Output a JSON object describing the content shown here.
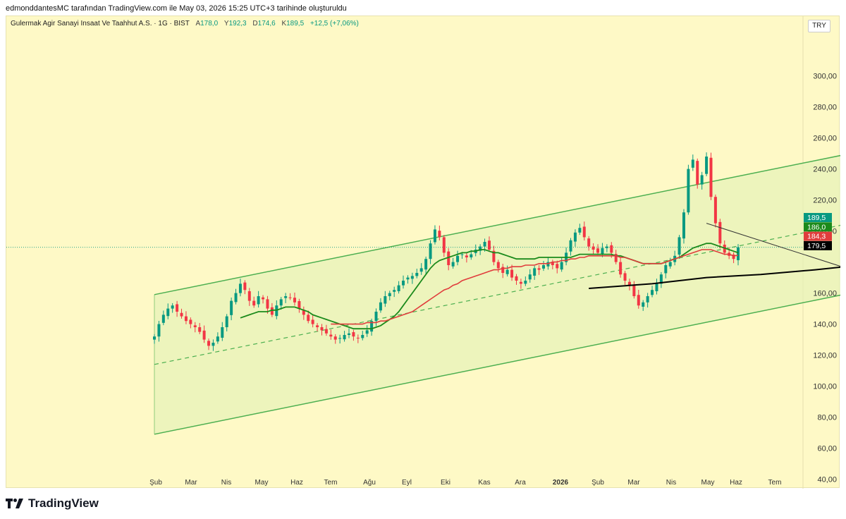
{
  "header": {
    "attribution": "edmonddantesMC tarafından TradingView.com ile May 03, 2026 15:25 UTC+3 tarihinde oluşturuldu"
  },
  "legend": {
    "symbol": "Gulermak Agir Sanayi Insaat Ve Taahhut A.S. · 1G · BIST",
    "open_label": "A",
    "open": "178,0",
    "high_label": "Y",
    "high": "192,3",
    "low_label": "D",
    "low": "174,6",
    "close_label": "K",
    "close": "189,5",
    "change": "+12,5 (+7,06%)"
  },
  "currency": "TRY",
  "footer": {
    "brand": "TradingView",
    "logo_icon": "tradingview-logo-icon"
  },
  "colors": {
    "background": "#fef9c6",
    "channel": "#4caf50",
    "up": "#089981",
    "down": "#f23645",
    "ma_green": "#1b8a1b",
    "ma_red": "#e03c3c",
    "ma_black": "#000000"
  },
  "chart_data": {
    "type": "candlestick",
    "y_ticks": [
      "300,00",
      "280,00",
      "260,00",
      "240,00",
      "220,00",
      "200,00",
      "160,00",
      "140,00",
      "120,00",
      "100,00",
      "80,00",
      "60,00",
      "40,00"
    ],
    "y_tick_values": [
      300,
      280,
      260,
      240,
      220,
      200,
      160,
      140,
      120,
      100,
      80,
      60,
      40
    ],
    "x_ticks": [
      "Şub",
      "Mar",
      "Nis",
      "May",
      "Haz",
      "Tem",
      "Ağu",
      "Eyl",
      "Eki",
      "Kas",
      "Ara",
      "2026",
      "Şub",
      "Mar",
      "Nis",
      "May",
      "Haz",
      "Tem"
    ],
    "price_labels": [
      {
        "text": "189,5",
        "value": 189.5,
        "color": "#089981"
      },
      {
        "text": "186,0",
        "value": 186.0,
        "color": "#1b8a1b"
      },
      {
        "text": "184,3",
        "value": 184.3,
        "color": "#e03c3c"
      },
      {
        "text": "179,5",
        "value": 179.5,
        "color": "#000000"
      }
    ],
    "channel": {
      "upper": [
        [
          0,
          159
        ],
        [
          164,
          256
        ]
      ],
      "middle": [
        [
          0,
          114
        ],
        [
          164,
          211
        ]
      ],
      "lower": [
        [
          0,
          69
        ],
        [
          164,
          166
        ]
      ]
    },
    "trendline": [
      [
        122,
        205
      ],
      [
        164,
        172
      ]
    ],
    "closes": [
      132,
      140,
      146,
      150,
      152,
      148,
      145,
      142,
      140,
      138,
      135,
      130,
      126,
      128,
      132,
      138,
      145,
      155,
      160,
      166,
      162,
      155,
      152,
      158,
      156,
      150,
      146,
      152,
      156,
      158,
      157,
      154,
      150,
      146,
      142,
      140,
      138,
      136,
      134,
      132,
      130,
      131,
      133,
      134,
      132,
      131,
      133,
      136,
      142,
      148,
      154,
      158,
      160,
      162,
      165,
      168,
      170,
      171,
      173,
      176,
      182,
      192,
      201,
      196,
      186,
      178,
      180,
      184,
      185,
      183,
      185,
      188,
      190,
      193,
      188,
      180,
      176,
      173,
      175,
      170,
      168,
      166,
      168,
      172,
      176,
      175,
      178,
      180,
      178,
      176,
      180,
      186,
      194,
      199,
      202,
      196,
      190,
      188,
      186,
      189,
      190,
      186,
      180,
      172,
      168,
      165,
      158,
      152,
      154,
      158,
      162,
      166,
      172,
      178,
      180,
      184,
      196,
      212,
      240,
      246,
      230,
      236,
      248,
      222,
      205,
      192,
      186,
      184,
      182,
      189.5
    ],
    "ma_green": [
      null,
      null,
      null,
      null,
      null,
      null,
      null,
      null,
      null,
      null,
      null,
      null,
      null,
      null,
      null,
      null,
      null,
      null,
      null,
      144,
      145,
      146,
      147,
      148,
      148,
      148,
      149,
      149,
      150,
      151,
      151,
      151,
      150,
      149,
      148,
      146,
      145,
      144,
      143,
      142,
      141,
      140,
      139,
      138,
      137,
      137,
      137,
      137,
      137,
      138,
      139,
      141,
      143,
      145,
      148,
      152,
      156,
      160,
      164,
      168,
      172,
      176,
      179,
      181,
      182,
      183,
      184,
      185,
      186,
      186,
      187,
      187,
      188,
      188,
      187,
      186,
      186,
      185,
      184,
      183,
      182,
      182,
      182,
      182,
      182,
      183,
      183,
      183,
      183,
      183,
      183,
      183,
      183,
      184,
      185,
      185,
      185,
      185,
      185,
      185,
      185,
      185,
      184,
      184,
      183,
      182,
      181,
      180,
      179,
      179,
      179,
      179,
      179,
      180,
      181,
      182,
      183,
      185,
      187,
      189,
      190,
      191,
      192,
      192,
      191,
      190,
      189,
      188,
      187,
      186
    ],
    "ma_red": [
      null,
      null,
      null,
      null,
      null,
      null,
      null,
      null,
      null,
      null,
      null,
      null,
      null,
      null,
      null,
      null,
      null,
      null,
      null,
      null,
      null,
      null,
      null,
      null,
      null,
      null,
      null,
      null,
      null,
      null,
      null,
      null,
      null,
      null,
      null,
      null,
      null,
      null,
      null,
      140,
      140,
      140,
      140,
      140,
      140,
      140,
      140,
      141,
      141,
      141,
      142,
      142,
      143,
      144,
      145,
      146,
      147,
      148,
      150,
      152,
      154,
      156,
      158,
      160,
      162,
      163,
      165,
      166,
      168,
      169,
      170,
      171,
      172,
      173,
      174,
      175,
      175,
      176,
      176,
      177,
      177,
      177,
      178,
      178,
      178,
      179,
      179,
      179,
      180,
      180,
      181,
      181,
      182,
      182,
      183,
      183,
      184,
      184,
      184,
      184,
      184,
      184,
      184,
      183,
      183,
      182,
      181,
      180,
      179,
      179,
      179,
      179,
      179,
      180,
      181,
      182,
      183,
      184,
      185,
      186,
      187,
      188,
      188,
      188,
      187,
      186,
      185,
      185,
      184,
      184.3
    ],
    "ma_black": [
      [
        96,
        163
      ],
      [
        110,
        166
      ],
      [
        122,
        170
      ],
      [
        134,
        172
      ],
      [
        146,
        175
      ],
      [
        156,
        178
      ],
      [
        164,
        181
      ]
    ]
  }
}
